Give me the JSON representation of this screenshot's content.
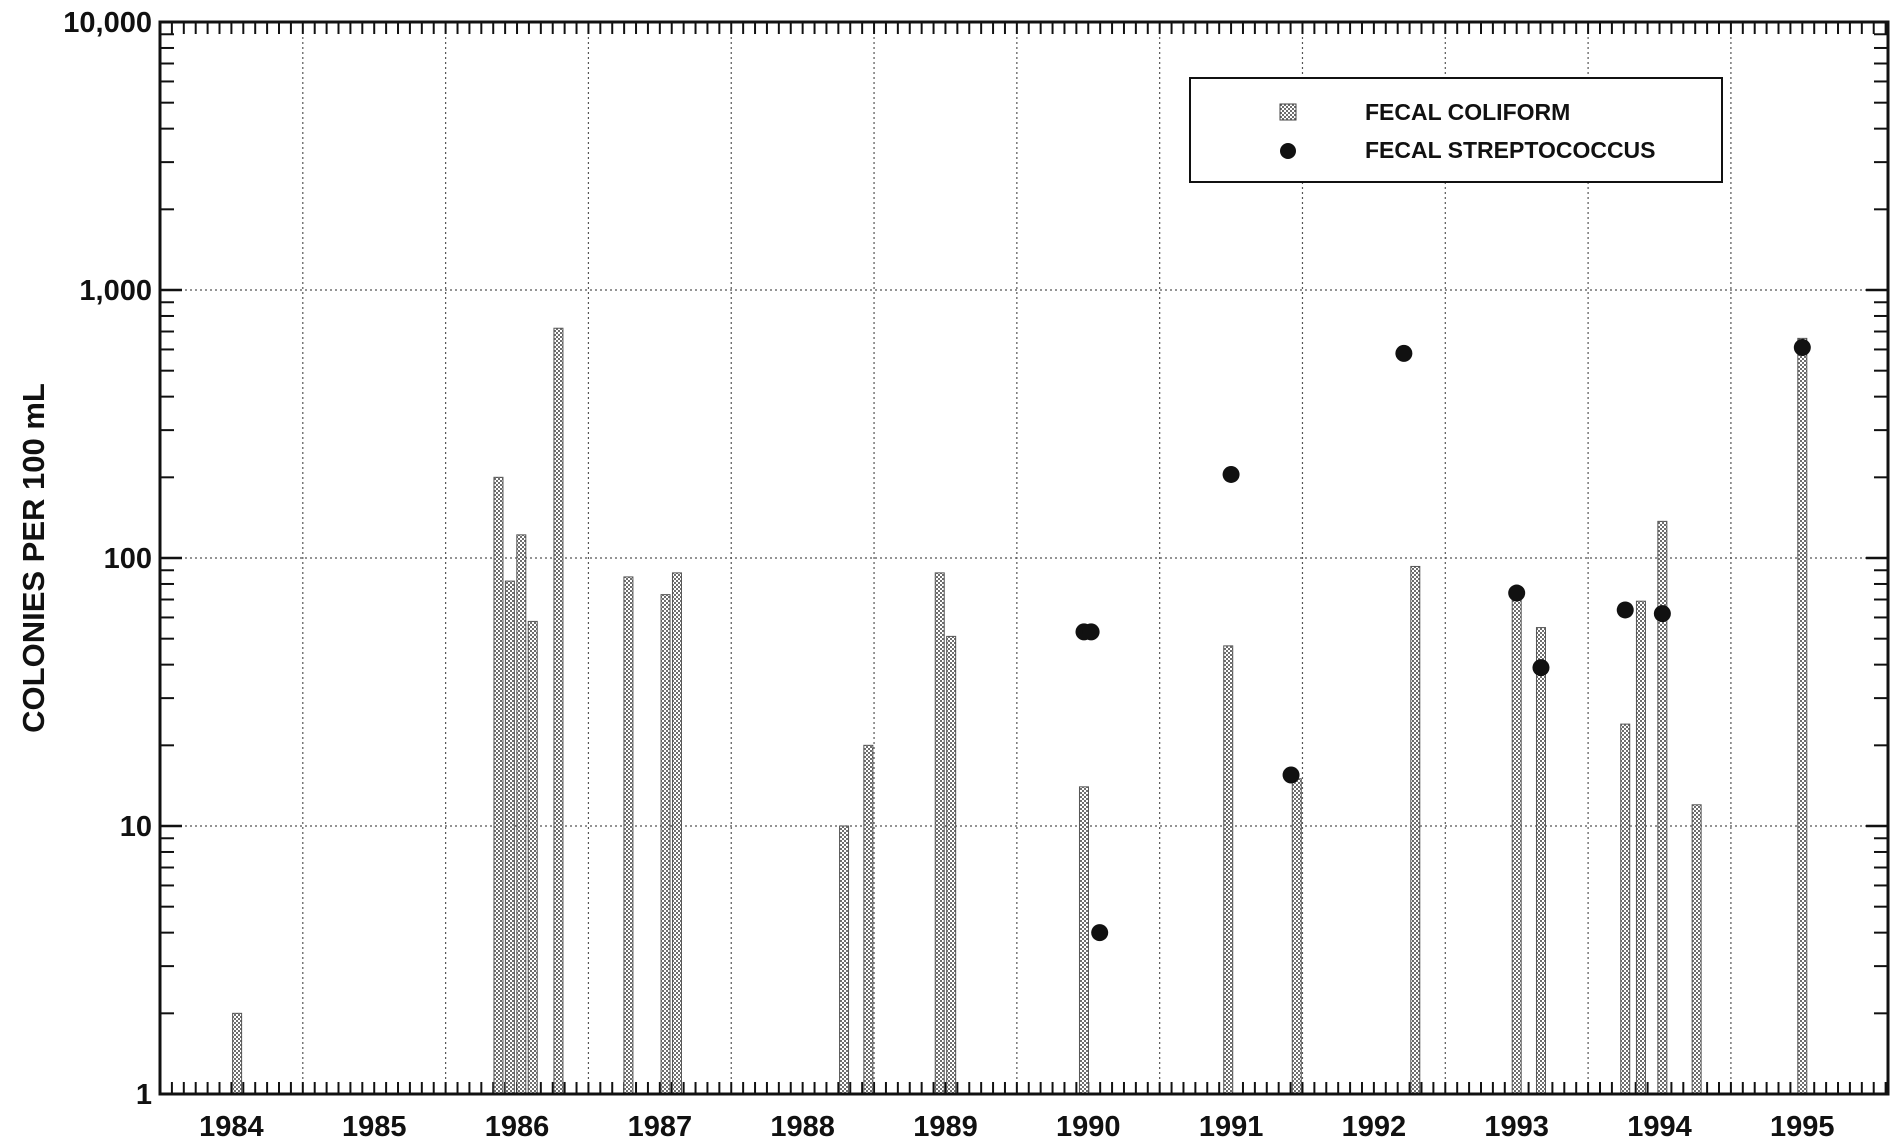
{
  "chart_data": {
    "type": "bar",
    "title": "",
    "ylabel": "COLONIES PER 100 mL",
    "xlabel": "",
    "y_scale": "log",
    "ylim": [
      1,
      10000
    ],
    "xlim": [
      1983.5,
      1995.6
    ],
    "y_ticks": [
      {
        "value": 1,
        "label": "1"
      },
      {
        "value": 10,
        "label": "10"
      },
      {
        "value": 100,
        "label": "100"
      },
      {
        "value": 1000,
        "label": "1,000"
      },
      {
        "value": 10000,
        "label": "10,000"
      }
    ],
    "x_ticks": [
      {
        "value": 1984,
        "label": "1984"
      },
      {
        "value": 1985,
        "label": "1985"
      },
      {
        "value": 1986,
        "label": "1986"
      },
      {
        "value": 1987,
        "label": "1987"
      },
      {
        "value": 1988,
        "label": "1988"
      },
      {
        "value": 1989,
        "label": "1989"
      },
      {
        "value": 1990,
        "label": "1990"
      },
      {
        "value": 1991,
        "label": "1991"
      },
      {
        "value": 1992,
        "label": "1992"
      },
      {
        "value": 1993,
        "label": "1993"
      },
      {
        "value": 1994,
        "label": "1994"
      },
      {
        "value": 1995,
        "label": "1995"
      }
    ],
    "grid": true,
    "legend_position": "top-right",
    "legend": [
      {
        "label": "FECAL COLIFORM",
        "marker": "hatched-bar"
      },
      {
        "label": "FECAL STREPTOCOCCUS",
        "marker": "dot"
      }
    ],
    "series": [
      {
        "name": "FECAL COLIFORM",
        "kind": "bar",
        "color": "#8a8a8a",
        "points": [
          {
            "x": 1984.04,
            "y": 2
          },
          {
            "x": 1985.87,
            "y": 200
          },
          {
            "x": 1985.95,
            "y": 82
          },
          {
            "x": 1986.03,
            "y": 122
          },
          {
            "x": 1986.11,
            "y": 58
          },
          {
            "x": 1986.29,
            "y": 720
          },
          {
            "x": 1986.78,
            "y": 85
          },
          {
            "x": 1987.04,
            "y": 73
          },
          {
            "x": 1987.12,
            "y": 88
          },
          {
            "x": 1988.29,
            "y": 10
          },
          {
            "x": 1988.46,
            "y": 20
          },
          {
            "x": 1988.96,
            "y": 88
          },
          {
            "x": 1989.04,
            "y": 51
          },
          {
            "x": 1989.97,
            "y": 14
          },
          {
            "x": 1990.98,
            "y": 47
          },
          {
            "x": 1991.46,
            "y": 15
          },
          {
            "x": 1992.29,
            "y": 93
          },
          {
            "x": 1993.0,
            "y": 73
          },
          {
            "x": 1993.17,
            "y": 55
          },
          {
            "x": 1993.76,
            "y": 24
          },
          {
            "x": 1993.87,
            "y": 69
          },
          {
            "x": 1994.02,
            "y": 137
          },
          {
            "x": 1994.26,
            "y": 12
          },
          {
            "x": 1995.0,
            "y": 660
          }
        ]
      },
      {
        "name": "FECAL STREPTOCOCCUS",
        "kind": "scatter",
        "color": "#111111",
        "points": [
          {
            "x": 1989.97,
            "y": 53
          },
          {
            "x": 1990.02,
            "y": 53
          },
          {
            "x": 1990.08,
            "y": 4
          },
          {
            "x": 1991.0,
            "y": 205
          },
          {
            "x": 1991.42,
            "y": 15.5
          },
          {
            "x": 1992.21,
            "y": 580
          },
          {
            "x": 1993.0,
            "y": 74
          },
          {
            "x": 1993.17,
            "y": 39
          },
          {
            "x": 1993.76,
            "y": 64
          },
          {
            "x": 1994.02,
            "y": 62
          },
          {
            "x": 1995.0,
            "y": 610
          }
        ]
      }
    ]
  }
}
